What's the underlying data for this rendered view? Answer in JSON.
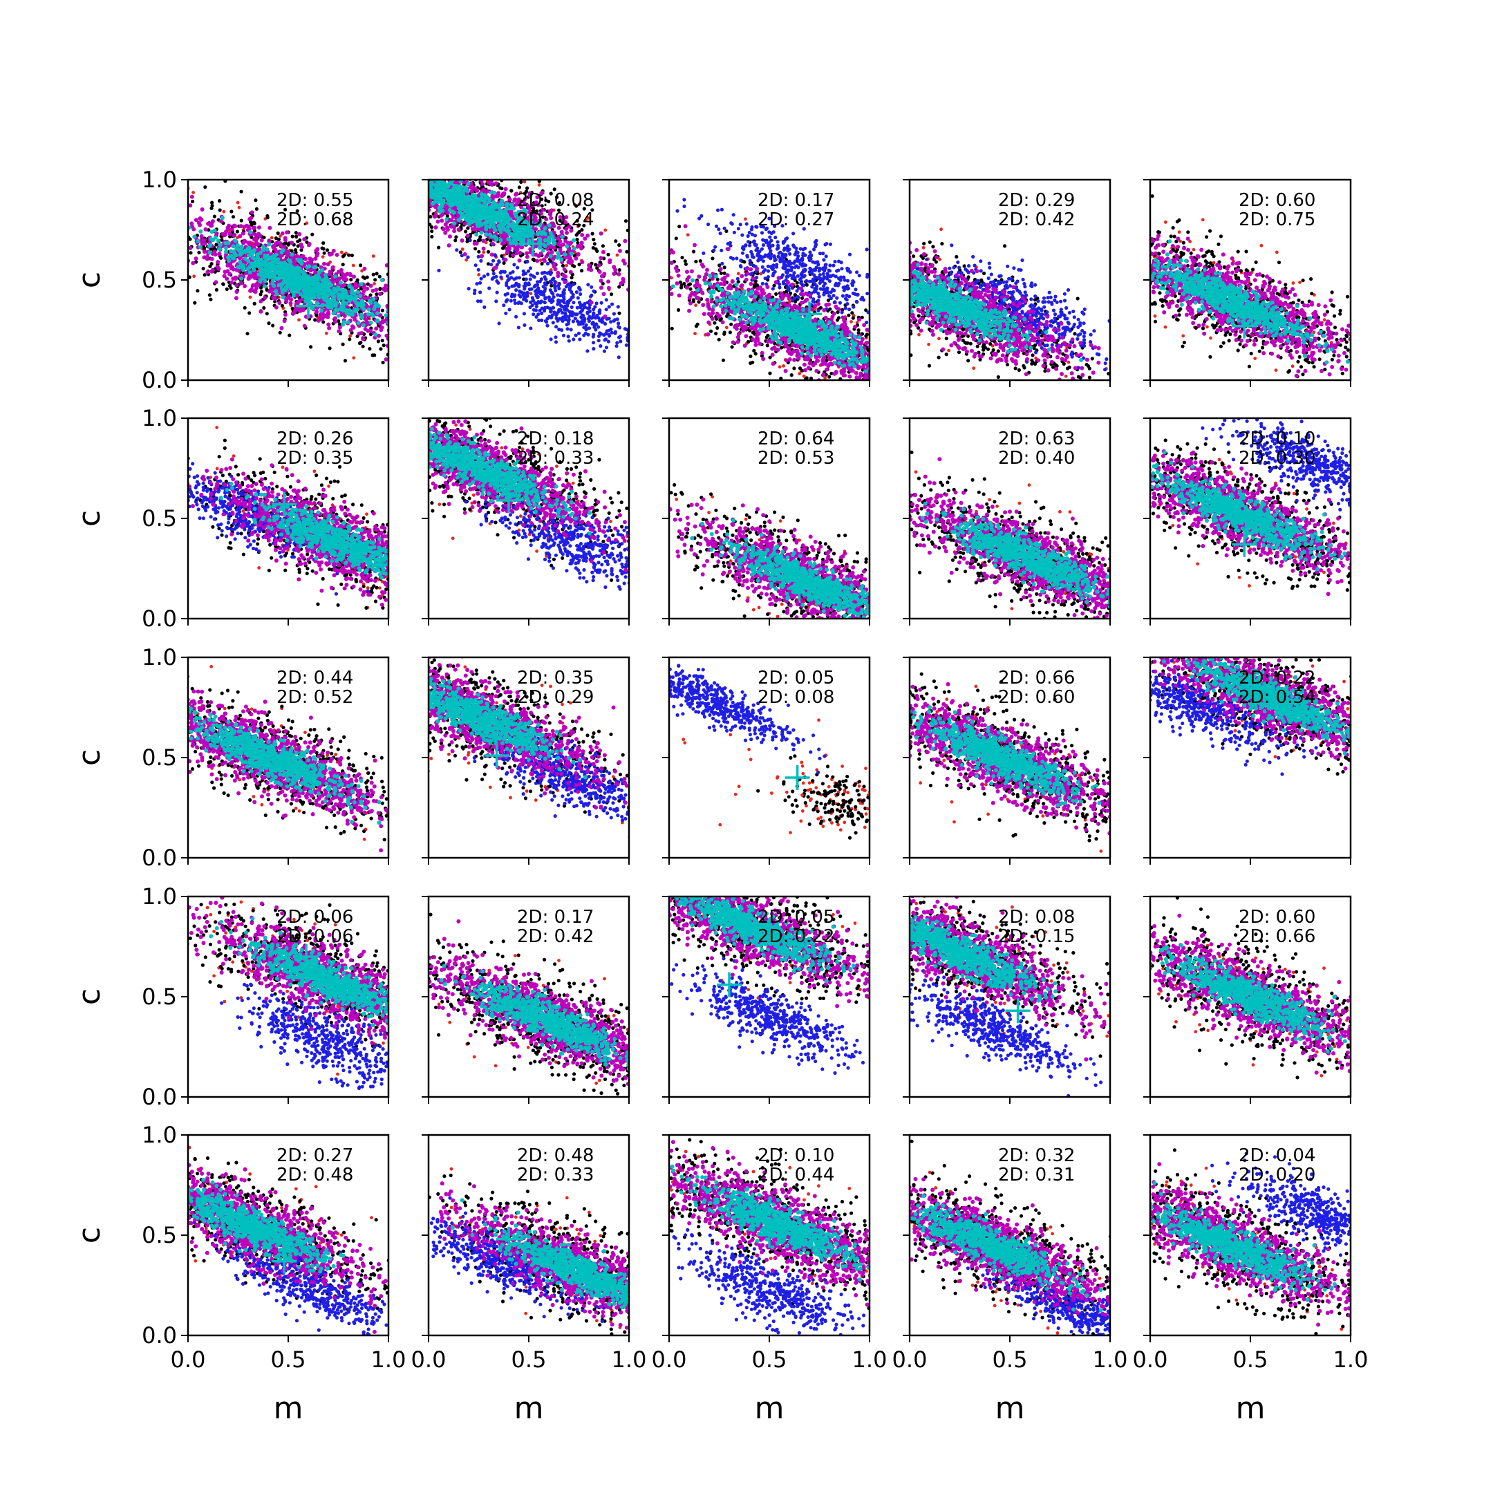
{
  "chart_data": {
    "type": "scatter",
    "grid": {
      "rows": 5,
      "cols": 5
    },
    "xlabel": "m",
    "ylabel": "c",
    "xlim": [
      0,
      1
    ],
    "ylim": [
      0,
      1
    ],
    "xticks": [
      "0.0",
      "0.5",
      "1.0"
    ],
    "yticks": [
      "0.0",
      "0.5",
      "1.0"
    ],
    "series_colors": {
      "red": "#e8291c",
      "black": "#000000",
      "blue": "#1f1fe6",
      "magenta": "#bf00bf",
      "cyan": "#00bfbf",
      "marker": "#00bfbf"
    },
    "panels": [
      {
        "labels": [
          "2D: 0.55",
          "2D: 0.68"
        ],
        "main": {
          "cx": 0.55,
          "cy": 0.5,
          "slope": -0.45
        },
        "blue": null,
        "marker": [
          0.6,
          0.37
        ]
      },
      {
        "labels": [
          "2D: 0.08",
          "2D: 0.24"
        ],
        "main": {
          "cx": 0.25,
          "cy": 0.85,
          "slope": -0.45
        },
        "blue": {
          "cx": 0.65,
          "cy": 0.38,
          "slope": -0.45,
          "spread": 0.07
        },
        "marker": [
          0.52,
          0.68
        ]
      },
      {
        "labels": [
          "2D: 0.17",
          "2D: 0.27"
        ],
        "main": {
          "cx": 0.65,
          "cy": 0.25,
          "slope": -0.45
        },
        "blue": {
          "cx": 0.65,
          "cy": 0.55,
          "slope": -0.45,
          "spread": 0.07
        },
        "marker": [
          0.7,
          0.33
        ]
      },
      {
        "labels": [
          "2D: 0.29",
          "2D: 0.42"
        ],
        "main": {
          "cx": 0.2,
          "cy": 0.38,
          "slope": -0.45
        },
        "blue": {
          "cx": 0.55,
          "cy": 0.35,
          "slope": -0.45,
          "spread": 0.07
        },
        "marker": [
          0.37,
          0.27
        ]
      },
      {
        "labels": [
          "2D: 0.60",
          "2D: 0.75"
        ],
        "main": {
          "cx": 0.4,
          "cy": 0.4,
          "slope": -0.45
        },
        "blue": null,
        "marker": [
          0.47,
          0.27
        ]
      },
      {
        "labels": [
          "2D: 0.26",
          "2D: 0.35"
        ],
        "main": {
          "cx": 0.75,
          "cy": 0.38,
          "slope": -0.45
        },
        "blue": {
          "cx": 0.3,
          "cy": 0.52,
          "slope": -0.45,
          "spread": 0.06
        },
        "marker": [
          0.48,
          0.57
        ]
      },
      {
        "labels": [
          "2D: 0.18",
          "2D: 0.33"
        ],
        "main": {
          "cx": 0.25,
          "cy": 0.75,
          "slope": -0.45
        },
        "blue": {
          "cx": 0.75,
          "cy": 0.38,
          "slope": -0.45,
          "spread": 0.07
        },
        "marker": [
          0.4,
          0.59
        ]
      },
      {
        "labels": [
          "2D: 0.64",
          "2D: 0.53"
        ],
        "main": {
          "cx": 0.7,
          "cy": 0.18,
          "slope": -0.45
        },
        "blue": null,
        "marker": [
          0.65,
          0.15
        ]
      },
      {
        "labels": [
          "2D: 0.63",
          "2D: 0.40"
        ],
        "main": {
          "cx": 0.6,
          "cy": 0.3,
          "slope": -0.45
        },
        "blue": null,
        "marker": [
          0.5,
          0.35
        ]
      },
      {
        "labels": [
          "2D: 0.10",
          "2D: 0.30"
        ],
        "main": {
          "cx": 0.45,
          "cy": 0.52,
          "slope": -0.45
        },
        "blue": {
          "cx": 0.8,
          "cy": 0.78,
          "slope": -0.45,
          "spread": 0.06
        },
        "marker": [
          0.47,
          0.37
        ]
      },
      {
        "labels": [
          "2D: 0.44",
          "2D: 0.52"
        ],
        "main": {
          "cx": 0.4,
          "cy": 0.5,
          "slope": -0.45
        },
        "blue": null,
        "marker": [
          0.48,
          0.5
        ]
      },
      {
        "labels": [
          "2D: 0.35",
          "2D: 0.29"
        ],
        "main": {
          "cx": 0.25,
          "cy": 0.7,
          "slope": -0.45
        },
        "blue": {
          "cx": 0.7,
          "cy": 0.4,
          "slope": -0.45,
          "spread": 0.06
        },
        "marker": [
          0.34,
          0.51
        ]
      },
      {
        "labels": [
          "2D: 0.05",
          "2D: 0.08"
        ],
        "main": null,
        "blue": {
          "cx": 0.22,
          "cy": 0.78,
          "slope": -0.45,
          "spread": 0.05
        },
        "marker": [
          0.64,
          0.4
        ]
      },
      {
        "labels": [
          "2D: 0.66",
          "2D: 0.60"
        ],
        "main": {
          "cx": 0.45,
          "cy": 0.5,
          "slope": -0.45
        },
        "blue": null,
        "marker": [
          0.55,
          0.45
        ]
      },
      {
        "labels": [
          "2D: 0.22",
          "2D: 0.54"
        ],
        "main": {
          "cx": 0.6,
          "cy": 0.8,
          "slope": -0.45
        },
        "blue": {
          "cx": 0.25,
          "cy": 0.75,
          "slope": -0.45,
          "spread": 0.06
        },
        "marker": [
          0.55,
          0.8
        ]
      },
      {
        "labels": [
          "2D: 0.06",
          "2D: 0.06"
        ],
        "main": {
          "cx": 0.7,
          "cy": 0.58,
          "slope": -0.45
        },
        "blue": {
          "cx": 0.7,
          "cy": 0.28,
          "slope": -0.45,
          "spread": 0.07
        },
        "marker": [
          0.59,
          0.7
        ]
      },
      {
        "labels": [
          "2D: 0.17",
          "2D: 0.42"
        ],
        "main": {
          "cx": 0.6,
          "cy": 0.38,
          "slope": -0.45
        },
        "blue": null,
        "marker": [
          0.62,
          0.38
        ]
      },
      {
        "labels": [
          "2D: 0.05",
          "2D: 0.22"
        ],
        "main": {
          "cx": 0.4,
          "cy": 0.85,
          "slope": -0.45
        },
        "blue": {
          "cx": 0.5,
          "cy": 0.4,
          "slope": -0.45,
          "spread": 0.06
        },
        "marker": [
          0.3,
          0.56
        ]
      },
      {
        "labels": [
          "2D: 0.08",
          "2D: 0.15"
        ],
        "main": {
          "cx": 0.25,
          "cy": 0.72,
          "slope": -0.45
        },
        "blue": {
          "cx": 0.4,
          "cy": 0.35,
          "slope": -0.45,
          "spread": 0.06
        },
        "marker": [
          0.54,
          0.43
        ]
      },
      {
        "labels": [
          "2D: 0.60",
          "2D: 0.66"
        ],
        "main": {
          "cx": 0.5,
          "cy": 0.5,
          "slope": -0.45
        },
        "blue": null,
        "marker": [
          0.55,
          0.48
        ]
      },
      {
        "labels": [
          "2D: 0.27",
          "2D: 0.48"
        ],
        "main": {
          "cx": 0.3,
          "cy": 0.55,
          "slope": -0.45
        },
        "blue": {
          "cx": 0.6,
          "cy": 0.25,
          "slope": -0.45,
          "spread": 0.06
        },
        "marker": [
          0.48,
          0.37
        ]
      },
      {
        "labels": [
          "2D: 0.48",
          "2D: 0.33"
        ],
        "main": {
          "cx": 0.75,
          "cy": 0.32,
          "slope": -0.45
        },
        "blue": {
          "cx": 0.35,
          "cy": 0.38,
          "slope": -0.45,
          "spread": 0.06
        },
        "marker": [
          0.4,
          0.48
        ]
      },
      {
        "labels": [
          "2D: 0.10",
          "2D: 0.44"
        ],
        "main": {
          "cx": 0.55,
          "cy": 0.55,
          "slope": -0.45
        },
        "blue": {
          "cx": 0.5,
          "cy": 0.22,
          "slope": -0.45,
          "spread": 0.07
        },
        "marker": [
          0.5,
          0.5
        ]
      },
      {
        "labels": [
          "2D: 0.32",
          "2D: 0.31"
        ],
        "main": {
          "cx": 0.4,
          "cy": 0.45,
          "slope": -0.45
        },
        "blue": {
          "cx": 0.85,
          "cy": 0.12,
          "slope": -0.45,
          "spread": 0.05
        },
        "marker": [
          0.5,
          0.4
        ]
      },
      {
        "labels": [
          "2D: 0.04",
          "2D: 0.20"
        ],
        "main": {
          "cx": 0.4,
          "cy": 0.45,
          "slope": -0.45
        },
        "blue": {
          "cx": 0.85,
          "cy": 0.6,
          "slope": -0.45,
          "spread": 0.06
        },
        "marker": [
          0.5,
          0.42
        ]
      }
    ]
  }
}
